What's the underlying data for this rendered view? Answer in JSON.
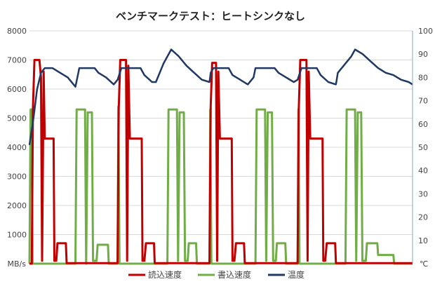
{
  "chart_data": {
    "type": "line",
    "title": "ベンチマークテスト：ヒートシンクなし",
    "y_left": {
      "unit_label": "MB/s",
      "ticks": [
        0,
        1000,
        2000,
        3000,
        4000,
        5000,
        6000,
        7000,
        8000
      ],
      "range": [
        0,
        8000
      ]
    },
    "y_right": {
      "unit_label": "℃",
      "ticks": [
        0,
        10,
        20,
        30,
        40,
        50,
        60,
        70,
        80,
        90,
        100
      ],
      "range": [
        0,
        100
      ]
    },
    "x_range": [
      0,
      100
    ],
    "grid": true,
    "legend_position": "bottom",
    "colors": {
      "read": "#c00000",
      "write": "#70ad47",
      "temp": "#1f3864"
    },
    "series": [
      {
        "name": "読込速度",
        "axis": "left",
        "points": [
          [
            0,
            0
          ],
          [
            0.6,
            0
          ],
          [
            0.9,
            5300
          ],
          [
            1.3,
            7000
          ],
          [
            2.6,
            7000
          ],
          [
            3.0,
            6400
          ],
          [
            3.3,
            100
          ],
          [
            3.7,
            6600
          ],
          [
            4.0,
            4300
          ],
          [
            6.3,
            4300
          ],
          [
            6.5,
            100
          ],
          [
            7.0,
            100
          ],
          [
            7.3,
            700
          ],
          [
            9.5,
            700
          ],
          [
            9.7,
            20
          ],
          [
            23,
            20
          ],
          [
            23.3,
            5300
          ],
          [
            23.7,
            7000
          ],
          [
            25.2,
            7000
          ],
          [
            25.5,
            100
          ],
          [
            25.8,
            6800
          ],
          [
            26.2,
            4300
          ],
          [
            29.3,
            4300
          ],
          [
            29.5,
            100
          ],
          [
            30.0,
            100
          ],
          [
            30.4,
            700
          ],
          [
            32.5,
            700
          ],
          [
            32.7,
            20
          ],
          [
            47,
            20
          ],
          [
            47.3,
            5400
          ],
          [
            47.7,
            6900
          ],
          [
            48.7,
            6900
          ],
          [
            49.0,
            100
          ],
          [
            49.3,
            6600
          ],
          [
            49.7,
            4300
          ],
          [
            52.8,
            4300
          ],
          [
            53.0,
            100
          ],
          [
            53.5,
            100
          ],
          [
            53.9,
            700
          ],
          [
            56.0,
            700
          ],
          [
            56.2,
            20
          ],
          [
            70,
            20
          ],
          [
            70.3,
            5300
          ],
          [
            70.7,
            7000
          ],
          [
            72.3,
            7000
          ],
          [
            72.6,
            100
          ],
          [
            72.9,
            6600
          ],
          [
            73.3,
            4300
          ],
          [
            76.5,
            4300
          ],
          [
            76.7,
            100
          ],
          [
            77.2,
            100
          ],
          [
            77.6,
            700
          ],
          [
            79.8,
            700
          ],
          [
            80.0,
            20
          ],
          [
            100,
            20
          ]
        ]
      },
      {
        "name": "書込速度",
        "axis": "left",
        "points": [
          [
            0,
            0
          ],
          [
            0.3,
            5300
          ],
          [
            0.6,
            5300
          ],
          [
            0.8,
            0
          ],
          [
            3.5,
            0
          ],
          [
            12,
            0
          ],
          [
            12.3,
            5300
          ],
          [
            14.5,
            5300
          ],
          [
            14.8,
            0
          ],
          [
            15.2,
            5200
          ],
          [
            16.3,
            5200
          ],
          [
            16.6,
            100
          ],
          [
            17.5,
            100
          ],
          [
            17.8,
            650
          ],
          [
            20.5,
            650
          ],
          [
            20.7,
            0
          ],
          [
            23,
            0
          ],
          [
            23.2,
            5400
          ],
          [
            23.5,
            0
          ],
          [
            36,
            0
          ],
          [
            36.3,
            5300
          ],
          [
            38.5,
            5300
          ],
          [
            38.8,
            100
          ],
          [
            39.2,
            5200
          ],
          [
            40.3,
            5200
          ],
          [
            40.6,
            100
          ],
          [
            41.3,
            100
          ],
          [
            41.6,
            700
          ],
          [
            43.5,
            700
          ],
          [
            43.7,
            0
          ],
          [
            47,
            0
          ],
          [
            47.2,
            5300
          ],
          [
            47.5,
            0
          ],
          [
            59,
            0
          ],
          [
            59.3,
            5300
          ],
          [
            61.5,
            5300
          ],
          [
            61.8,
            100
          ],
          [
            62.2,
            5200
          ],
          [
            63.3,
            5200
          ],
          [
            63.6,
            100
          ],
          [
            64.3,
            100
          ],
          [
            64.6,
            700
          ],
          [
            66.8,
            700
          ],
          [
            67.0,
            0
          ],
          [
            70,
            0
          ],
          [
            70.2,
            5300
          ],
          [
            70.5,
            0
          ],
          [
            82.5,
            0
          ],
          [
            82.8,
            5300
          ],
          [
            85.0,
            5300
          ],
          [
            85.3,
            100
          ],
          [
            85.7,
            5200
          ],
          [
            86.6,
            5200
          ],
          [
            86.9,
            100
          ],
          [
            87.8,
            100
          ],
          [
            88.1,
            700
          ],
          [
            90.8,
            700
          ],
          [
            91.0,
            300
          ],
          [
            95,
            300
          ],
          [
            95.2,
            0
          ],
          [
            100,
            0
          ]
        ]
      },
      {
        "name": "温度",
        "axis": "right",
        "points": [
          [
            0,
            51
          ],
          [
            1,
            62
          ],
          [
            2,
            75
          ],
          [
            3,
            82
          ],
          [
            4,
            84
          ],
          [
            5,
            84
          ],
          [
            6,
            84
          ],
          [
            7,
            83
          ],
          [
            8,
            82
          ],
          [
            10,
            80
          ],
          [
            12,
            76
          ],
          [
            12.5,
            80
          ],
          [
            13,
            84
          ],
          [
            17,
            84
          ],
          [
            18,
            82
          ],
          [
            20,
            80
          ],
          [
            22,
            77
          ],
          [
            23,
            79
          ],
          [
            24,
            84
          ],
          [
            29,
            84
          ],
          [
            30,
            81
          ],
          [
            32,
            78
          ],
          [
            33,
            78
          ],
          [
            35,
            86
          ],
          [
            37,
            92
          ],
          [
            39,
            89
          ],
          [
            41,
            85
          ],
          [
            43,
            82
          ],
          [
            45,
            79
          ],
          [
            47,
            78
          ],
          [
            47.3,
            82
          ],
          [
            48,
            84
          ],
          [
            52,
            84
          ],
          [
            53,
            81
          ],
          [
            55,
            79
          ],
          [
            57,
            77
          ],
          [
            58.5,
            80
          ],
          [
            59,
            84
          ],
          [
            64,
            84
          ],
          [
            65,
            82
          ],
          [
            67,
            80
          ],
          [
            69,
            78
          ],
          [
            70,
            79
          ],
          [
            71,
            84
          ],
          [
            75,
            84
          ],
          [
            76,
            81
          ],
          [
            78,
            78
          ],
          [
            80,
            77
          ],
          [
            80.5,
            82
          ],
          [
            82,
            85
          ],
          [
            84,
            89
          ],
          [
            85,
            92
          ],
          [
            87,
            90
          ],
          [
            89,
            87
          ],
          [
            91,
            84
          ],
          [
            93,
            82
          ],
          [
            95,
            81
          ],
          [
            97,
            79
          ],
          [
            99,
            78
          ],
          [
            100,
            77
          ]
        ]
      }
    ]
  }
}
